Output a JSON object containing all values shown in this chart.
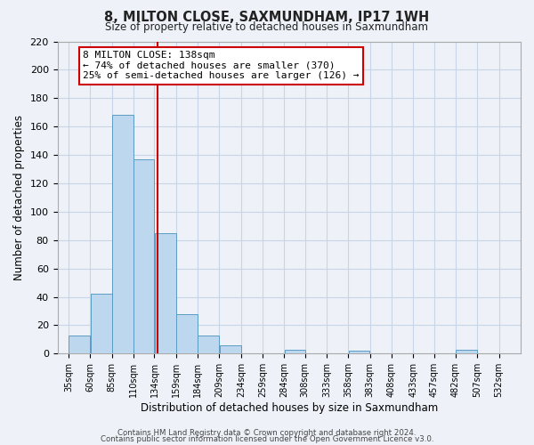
{
  "title": "8, MILTON CLOSE, SAXMUNDHAM, IP17 1WH",
  "subtitle": "Size of property relative to detached houses in Saxmundham",
  "xlabel": "Distribution of detached houses by size in Saxmundham",
  "ylabel": "Number of detached properties",
  "bar_left_edges": [
    35,
    60,
    85,
    110,
    134,
    159,
    184,
    209,
    234,
    259,
    284,
    308,
    333,
    358,
    383,
    408,
    433,
    457,
    482,
    507
  ],
  "bar_widths": [
    25,
    25,
    25,
    24,
    25,
    25,
    25,
    25,
    25,
    25,
    24,
    25,
    25,
    25,
    25,
    25,
    24,
    25,
    25,
    25
  ],
  "bar_heights": [
    13,
    42,
    168,
    137,
    85,
    28,
    13,
    6,
    0,
    0,
    3,
    0,
    0,
    2,
    0,
    0,
    0,
    0,
    3,
    0
  ],
  "bar_color": "#bdd7ee",
  "bar_edge_color": "#5a9cc5",
  "tick_labels": [
    "35sqm",
    "60sqm",
    "85sqm",
    "110sqm",
    "134sqm",
    "159sqm",
    "184sqm",
    "209sqm",
    "234sqm",
    "259sqm",
    "284sqm",
    "308sqm",
    "333sqm",
    "358sqm",
    "383sqm",
    "408sqm",
    "433sqm",
    "457sqm",
    "482sqm",
    "507sqm",
    "532sqm"
  ],
  "tick_positions": [
    35,
    60,
    85,
    110,
    134,
    159,
    184,
    209,
    234,
    259,
    284,
    308,
    333,
    358,
    383,
    408,
    433,
    457,
    482,
    507,
    532
  ],
  "ylim": [
    0,
    220
  ],
  "yticks": [
    0,
    20,
    40,
    60,
    80,
    100,
    120,
    140,
    160,
    180,
    200,
    220
  ],
  "vline_x": 138,
  "vline_color": "#cc0000",
  "annotation_title": "8 MILTON CLOSE: 138sqm",
  "annotation_line1": "← 74% of detached houses are smaller (370)",
  "annotation_line2": "25% of semi-detached houses are larger (126) →",
  "annotation_box_color": "#ffffff",
  "annotation_box_edge": "#cc0000",
  "grid_color": "#c8d4e8",
  "bg_color": "#eef2f8",
  "footer1": "Contains HM Land Registry data © Crown copyright and database right 2024.",
  "footer2": "Contains public sector information licensed under the Open Government Licence v3.0."
}
